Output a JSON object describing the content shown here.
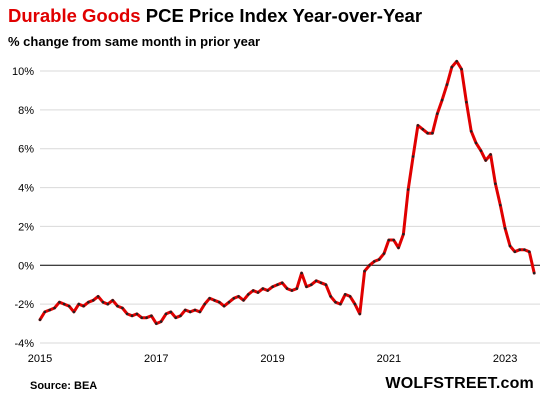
{
  "header": {
    "title_highlight": "Durable Goods",
    "title_rest": " PCE Price Index Year-over-Year",
    "subtitle": "% change from same month in prior year"
  },
  "footer": {
    "source": "Source: BEA",
    "brand": "WOLFSTREET.com"
  },
  "colors": {
    "line": "#e00000",
    "markers": "#222222",
    "grid": "#d9d9d9",
    "zero_line": "#000000",
    "title_highlight": "#e00000"
  },
  "chart_data": {
    "type": "line",
    "title": "Durable Goods PCE Price Index Year-over-Year",
    "subtitle": "% change from same month in prior year",
    "xlabel": "",
    "ylabel": "",
    "xlim": [
      "2015-01",
      "2023-08"
    ],
    "ylim": [
      -4,
      11
    ],
    "grid": true,
    "x_ticks": [
      "2015",
      "2017",
      "2019",
      "2021",
      "2023"
    ],
    "y_ticks": [
      "-4%",
      "-2%",
      "0%",
      "2%",
      "4%",
      "6%",
      "8%",
      "10%"
    ],
    "x": [
      "2015-01",
      "2015-02",
      "2015-03",
      "2015-04",
      "2015-05",
      "2015-06",
      "2015-07",
      "2015-08",
      "2015-09",
      "2015-10",
      "2015-11",
      "2015-12",
      "2016-01",
      "2016-02",
      "2016-03",
      "2016-04",
      "2016-05",
      "2016-06",
      "2016-07",
      "2016-08",
      "2016-09",
      "2016-10",
      "2016-11",
      "2016-12",
      "2017-01",
      "2017-02",
      "2017-03",
      "2017-04",
      "2017-05",
      "2017-06",
      "2017-07",
      "2017-08",
      "2017-09",
      "2017-10",
      "2017-11",
      "2017-12",
      "2018-01",
      "2018-02",
      "2018-03",
      "2018-04",
      "2018-05",
      "2018-06",
      "2018-07",
      "2018-08",
      "2018-09",
      "2018-10",
      "2018-11",
      "2018-12",
      "2019-01",
      "2019-02",
      "2019-03",
      "2019-04",
      "2019-05",
      "2019-06",
      "2019-07",
      "2019-08",
      "2019-09",
      "2019-10",
      "2019-11",
      "2019-12",
      "2020-01",
      "2020-02",
      "2020-03",
      "2020-04",
      "2020-05",
      "2020-06",
      "2020-07",
      "2020-08",
      "2020-09",
      "2020-10",
      "2020-11",
      "2020-12",
      "2021-01",
      "2021-02",
      "2021-03",
      "2021-04",
      "2021-05",
      "2021-06",
      "2021-07",
      "2021-08",
      "2021-09",
      "2021-10",
      "2021-11",
      "2021-12",
      "2022-01",
      "2022-02",
      "2022-03",
      "2022-04",
      "2022-05",
      "2022-06",
      "2022-07",
      "2022-08",
      "2022-09",
      "2022-10",
      "2022-11",
      "2022-12",
      "2023-01",
      "2023-02",
      "2023-03",
      "2023-04",
      "2023-05",
      "2023-06",
      "2023-07"
    ],
    "series": [
      {
        "values": [
          -2.8,
          -2.4,
          -2.3,
          -2.2,
          -1.9,
          -2.0,
          -2.1,
          -2.4,
          -2.0,
          -2.1,
          -1.9,
          -1.8,
          -1.6,
          -1.9,
          -2.0,
          -1.8,
          -2.1,
          -2.2,
          -2.5,
          -2.6,
          -2.5,
          -2.7,
          -2.7,
          -2.6,
          -3.0,
          -2.9,
          -2.5,
          -2.4,
          -2.7,
          -2.6,
          -2.3,
          -2.4,
          -2.3,
          -2.4,
          -2.0,
          -1.7,
          -1.8,
          -1.9,
          -2.1,
          -1.9,
          -1.7,
          -1.6,
          -1.8,
          -1.5,
          -1.3,
          -1.4,
          -1.2,
          -1.3,
          -1.1,
          -1.0,
          -0.9,
          -1.2,
          -1.3,
          -1.2,
          -0.4,
          -1.1,
          -1.0,
          -0.8,
          -0.9,
          -1.0,
          -1.6,
          -1.9,
          -2.0,
          -1.5,
          -1.6,
          -2.0,
          -2.5,
          -0.3,
          0.0,
          0.2,
          0.3,
          0.6,
          1.3,
          1.3,
          0.9,
          1.6,
          3.9,
          5.6,
          7.2,
          7.0,
          6.8,
          6.8,
          7.8,
          8.5,
          9.3,
          10.2,
          10.5,
          10.1,
          8.4,
          6.9,
          6.3,
          5.9,
          5.4,
          5.7,
          4.2,
          3.1,
          1.9,
          1.0,
          0.7,
          0.8,
          0.8,
          0.7,
          -0.4
        ]
      }
    ]
  }
}
